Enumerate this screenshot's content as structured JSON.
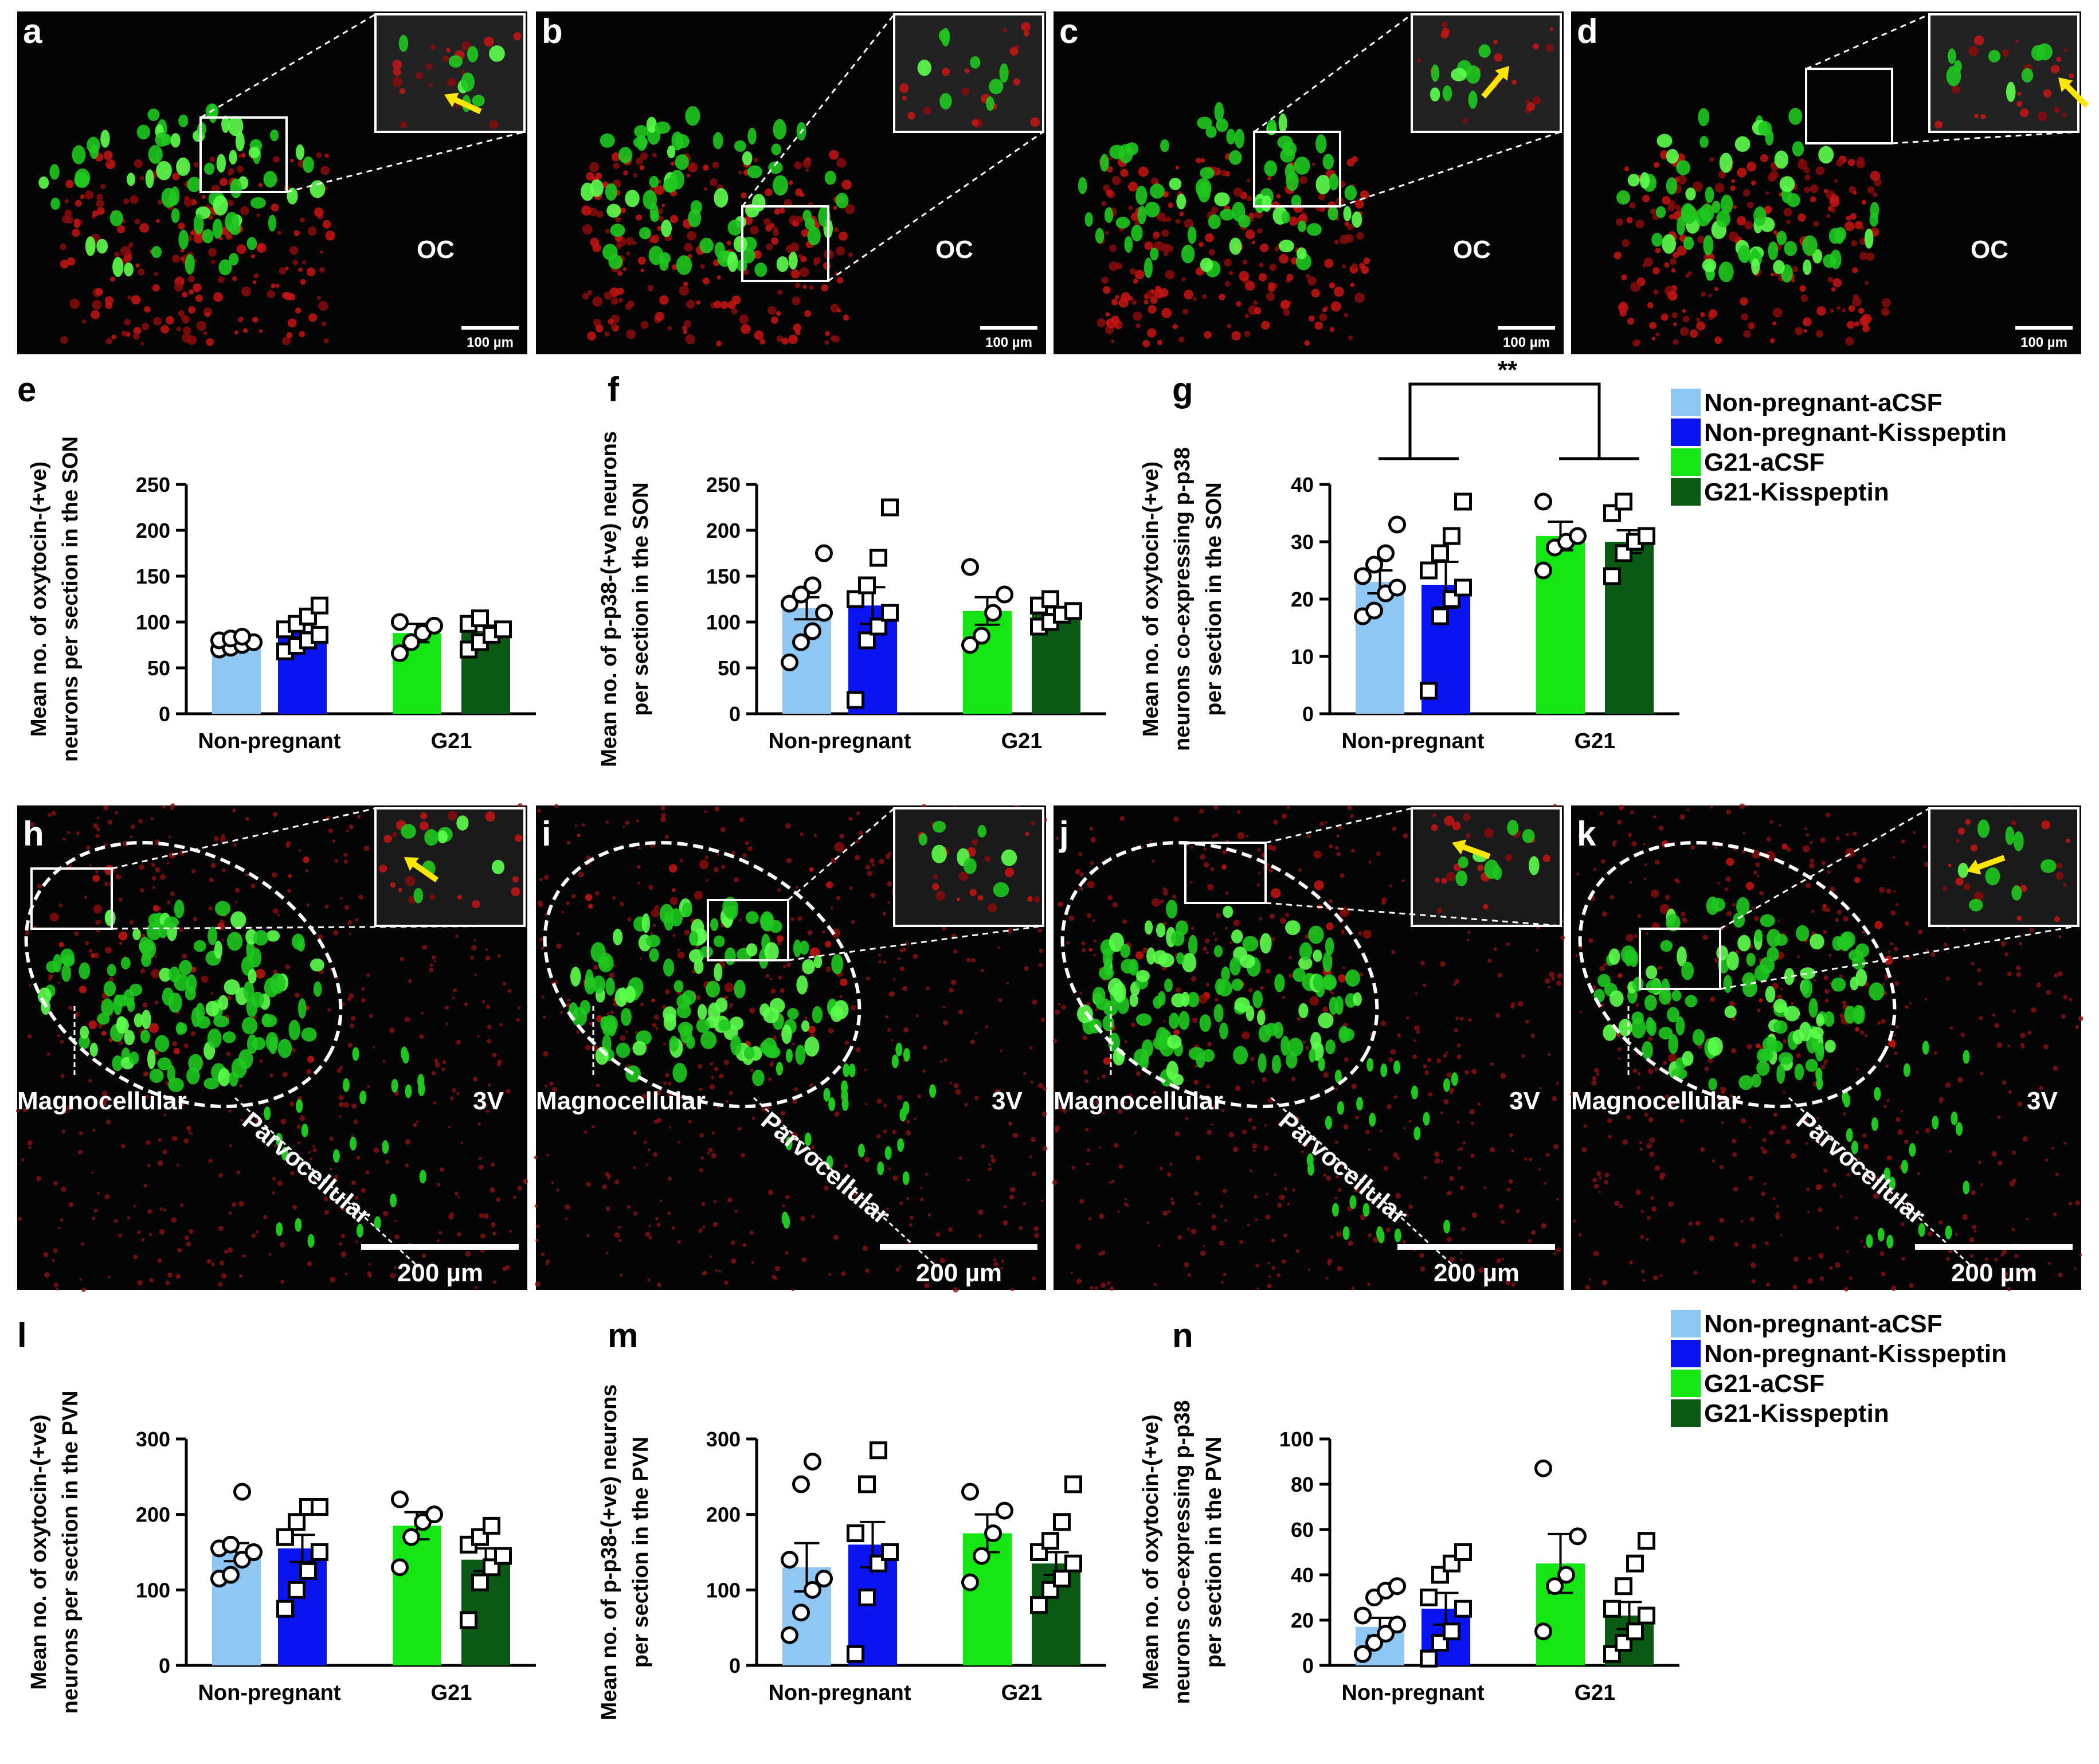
{
  "legend_colors": {
    "Non-pregnant-aCSF": "#8ec6f4",
    "Non-pregnant-Kisspeptin": "#0a14f0",
    "G21-aCSF": "#14e614",
    "G21-Kisspeptin": "#0a5a14"
  },
  "icons": [
    "arrow-icon"
  ],
  "micrograph_panels": [
    {
      "letter": "a",
      "region_label": "OC",
      "scale": "100 µm",
      "has_arrow": true
    },
    {
      "letter": "b",
      "region_label": "OC",
      "scale": "100 µm",
      "has_arrow": false
    },
    {
      "letter": "c",
      "region_label": "OC",
      "scale": "100 µm",
      "has_arrow": true
    },
    {
      "letter": "d",
      "region_label": "OC",
      "scale": "100 µm",
      "has_arrow": true
    },
    {
      "letter": "h",
      "label_magno": "Magnocellular",
      "label_parvo": "Parvocellular",
      "label_3v": "3V",
      "scale": "200 µm",
      "has_arrow": true
    },
    {
      "letter": "i",
      "label_magno": "Magnocellular",
      "label_parvo": "Parvocellular",
      "label_3v": "3V",
      "scale": "200 µm",
      "has_arrow": false
    },
    {
      "letter": "j",
      "label_magno": "Magnocellular",
      "label_parvo": "Parvocellular",
      "label_3v": "3V",
      "scale": "200 µm",
      "has_arrow": true
    },
    {
      "letter": "k",
      "label_magno": "Magnocellular",
      "label_parvo": "Parvocellular",
      "label_3v": "3V",
      "scale": "200 µm",
      "has_arrow": true
    }
  ],
  "legends": [
    {
      "items": [
        "Non-pregnant-aCSF",
        "Non-pregnant-Kisspeptin",
        "G21-aCSF",
        "G21-Kisspeptin"
      ]
    },
    {
      "items": [
        "Non-pregnant-aCSF",
        "Non-pregnant-Kisspeptin",
        "G21-aCSF",
        "G21-Kisspeptin"
      ]
    }
  ],
  "chart_data": [
    {
      "letter": "e",
      "type": "bar",
      "ylabel": [
        "Mean no. of oxytocin-(+ve)",
        "neurons per section in the SON"
      ],
      "categories": [
        "Non-pregnant",
        "G21"
      ],
      "ylim": [
        0,
        250
      ],
      "yticks": [
        0,
        50,
        100,
        150,
        200,
        250
      ],
      "series": [
        {
          "name": "Non-pregnant-aCSF",
          "group": 0,
          "mean": 77,
          "sem": 4,
          "marker": "circle",
          "points": [
            70,
            72,
            75,
            78,
            80,
            82,
            84
          ]
        },
        {
          "name": "Non-pregnant-Kisspeptin",
          "group": 0,
          "mean": 90,
          "sem": 7,
          "marker": "square",
          "points": [
            68,
            74,
            80,
            86,
            92,
            98,
            106,
            118
          ]
        },
        {
          "name": "G21-aCSF",
          "group": 1,
          "mean": 88,
          "sem": 10,
          "marker": "circle",
          "points": [
            66,
            78,
            88,
            96,
            100
          ]
        },
        {
          "name": "G21-Kisspeptin",
          "group": 1,
          "mean": 90,
          "sem": 6,
          "marker": "square",
          "points": [
            70,
            78,
            86,
            92,
            98,
            104
          ]
        }
      ]
    },
    {
      "letter": "f",
      "type": "bar",
      "ylabel": [
        "Mean no. of p-p38-(+ve) neurons",
        "per section in the SON"
      ],
      "categories": [
        "Non-pregnant",
        "G21"
      ],
      "ylim": [
        0,
        250
      ],
      "yticks": [
        0,
        50,
        100,
        150,
        200,
        250
      ],
      "series": [
        {
          "name": "Non-pregnant-aCSF",
          "group": 0,
          "mean": 115,
          "sem": 12,
          "marker": "circle",
          "points": [
            56,
            78,
            90,
            110,
            120,
            130,
            140,
            175
          ]
        },
        {
          "name": "Non-pregnant-Kisspeptin",
          "group": 0,
          "mean": 118,
          "sem": 20,
          "marker": "square",
          "points": [
            15,
            80,
            95,
            110,
            125,
            140,
            170,
            225
          ]
        },
        {
          "name": "G21-aCSF",
          "group": 1,
          "mean": 112,
          "sem": 15,
          "marker": "circle",
          "points": [
            75,
            85,
            110,
            130,
            160
          ]
        },
        {
          "name": "G21-Kisspeptin",
          "group": 1,
          "mean": 110,
          "sem": 6,
          "marker": "square",
          "points": [
            95,
            100,
            108,
            112,
            118,
            125
          ]
        }
      ]
    },
    {
      "letter": "g",
      "type": "bar",
      "ylabel": [
        "Mean no. of oxytocin-(+ve)",
        "neurons co-expressing p-p38",
        "per section in the SON"
      ],
      "categories": [
        "Non-pregnant",
        "G21"
      ],
      "ylim": [
        0,
        40
      ],
      "yticks": [
        0,
        10,
        20,
        30,
        40
      ],
      "significance": "**",
      "series": [
        {
          "name": "Non-pregnant-aCSF",
          "group": 0,
          "mean": 23,
          "sem": 2,
          "marker": "circle",
          "points": [
            17,
            18,
            21,
            22,
            24,
            26,
            28,
            33
          ]
        },
        {
          "name": "Non-pregnant-Kisspeptin",
          "group": 0,
          "mean": 22.5,
          "sem": 4,
          "marker": "square",
          "points": [
            4,
            17,
            20,
            22,
            25,
            28,
            31,
            37
          ]
        },
        {
          "name": "G21-aCSF",
          "group": 1,
          "mean": 31,
          "sem": 2.5,
          "marker": "circle",
          "points": [
            25,
            29,
            30,
            31,
            37
          ]
        },
        {
          "name": "G21-Kisspeptin",
          "group": 1,
          "mean": 30,
          "sem": 2,
          "marker": "square",
          "points": [
            24,
            28,
            30,
            31,
            35,
            37
          ]
        }
      ]
    },
    {
      "letter": "l",
      "type": "bar",
      "ylabel": [
        "Mean no. of oxytocin-(+ve)",
        "neurons per section in the PVN"
      ],
      "categories": [
        "Non-pregnant",
        "G21"
      ],
      "ylim": [
        0,
        300
      ],
      "yticks": [
        0,
        100,
        200,
        300
      ],
      "series": [
        {
          "name": "Non-pregnant-aCSF",
          "group": 0,
          "mean": 150,
          "sem": 12,
          "marker": "circle",
          "points": [
            115,
            120,
            140,
            150,
            155,
            160,
            230
          ]
        },
        {
          "name": "Non-pregnant-Kisspeptin",
          "group": 0,
          "mean": 155,
          "sem": 18,
          "marker": "square",
          "points": [
            75,
            100,
            125,
            150,
            170,
            190,
            210,
            210
          ]
        },
        {
          "name": "G21-aCSF",
          "group": 1,
          "mean": 185,
          "sem": 18,
          "marker": "circle",
          "points": [
            130,
            170,
            190,
            200,
            220
          ]
        },
        {
          "name": "G21-Kisspeptin",
          "group": 1,
          "mean": 140,
          "sem": 15,
          "marker": "square",
          "points": [
            60,
            110,
            130,
            145,
            160,
            170,
            185
          ]
        }
      ]
    },
    {
      "letter": "m",
      "type": "bar",
      "ylabel": [
        "Mean no. of p-p38-(+ve) neurons",
        "per section in the PVN"
      ],
      "categories": [
        "Non-pregnant",
        "G21"
      ],
      "ylim": [
        0,
        300
      ],
      "yticks": [
        0,
        100,
        200,
        300
      ],
      "series": [
        {
          "name": "Non-pregnant-aCSF",
          "group": 0,
          "mean": 130,
          "sem": 32,
          "marker": "circle",
          "points": [
            40,
            70,
            100,
            115,
            140,
            240,
            270
          ]
        },
        {
          "name": "Non-pregnant-Kisspeptin",
          "group": 0,
          "mean": 160,
          "sem": 30,
          "marker": "square",
          "points": [
            15,
            90,
            135,
            150,
            175,
            240,
            285
          ]
        },
        {
          "name": "G21-aCSF",
          "group": 1,
          "mean": 175,
          "sem": 25,
          "marker": "circle",
          "points": [
            110,
            145,
            175,
            205,
            230
          ]
        },
        {
          "name": "G21-Kisspeptin",
          "group": 1,
          "mean": 135,
          "sem": 15,
          "marker": "square",
          "points": [
            80,
            100,
            115,
            135,
            150,
            165,
            190,
            240
          ]
        }
      ]
    },
    {
      "letter": "n",
      "type": "bar",
      "ylabel": [
        "Mean no. of oxytocin-(+ve)",
        "neurons co-expressing p-p38",
        "per section in the PVN"
      ],
      "categories": [
        "Non-pregnant",
        "G21"
      ],
      "ylim": [
        0,
        100
      ],
      "yticks": [
        0,
        20,
        40,
        60,
        80,
        100
      ],
      "series": [
        {
          "name": "Non-pregnant-aCSF",
          "group": 0,
          "mean": 17,
          "sem": 4,
          "marker": "circle",
          "points": [
            5,
            10,
            14,
            18,
            22,
            30,
            33,
            35
          ]
        },
        {
          "name": "Non-pregnant-Kisspeptin",
          "group": 0,
          "mean": 25,
          "sem": 7,
          "marker": "square",
          "points": [
            3,
            10,
            15,
            25,
            30,
            40,
            45,
            50
          ]
        },
        {
          "name": "G21-aCSF",
          "group": 1,
          "mean": 45,
          "sem": 13,
          "marker": "circle",
          "points": [
            15,
            35,
            40,
            57,
            87
          ]
        },
        {
          "name": "G21-Kisspeptin",
          "group": 1,
          "mean": 22,
          "sem": 6,
          "marker": "square",
          "points": [
            5,
            10,
            15,
            22,
            25,
            35,
            45,
            55
          ]
        }
      ]
    }
  ]
}
